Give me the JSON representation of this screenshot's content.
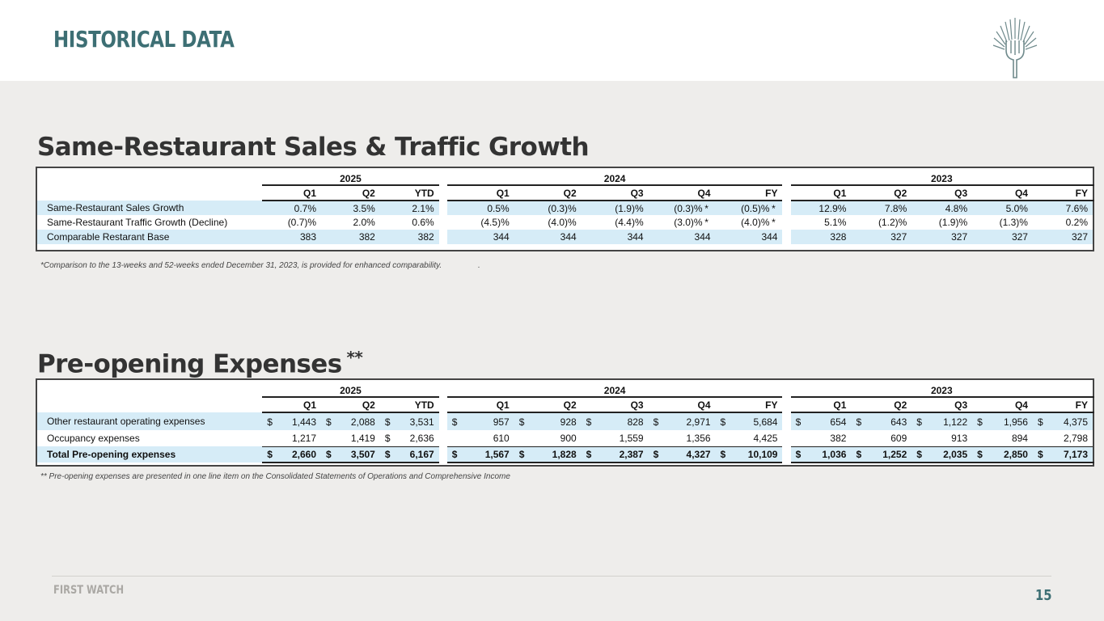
{
  "page": {
    "title": "HISTORICAL DATA",
    "brand": "FIRST WATCH",
    "page_number": "15",
    "accent_color": "#3d6f74",
    "logo_icon": "fork-sunburst-icon"
  },
  "sales": {
    "title": "Same-Restaurant Sales & Traffic Growth",
    "years": [
      "2025",
      "2024",
      "2023"
    ],
    "quarters": {
      "y2025": [
        "Q1",
        "Q2",
        "YTD"
      ],
      "y2024": [
        "Q1",
        "Q2",
        "Q3",
        "Q4",
        "FY"
      ],
      "y2023": [
        "Q1",
        "Q2",
        "Q3",
        "Q4",
        "FY"
      ]
    },
    "star": "*",
    "rows": [
      {
        "label": "Same-Restaurant Sales Growth",
        "v2025": [
          "0.7%",
          "3.5%",
          "2.1%"
        ],
        "v2024": [
          "0.5%",
          "(0.3)%",
          "(1.9)%",
          "(0.3)%",
          "(0.5)%"
        ],
        "v2023": [
          "12.9%",
          "7.8%",
          "4.8%",
          "5.0%",
          "7.6%"
        ]
      },
      {
        "label": "Same-Restaurant Traffic Growth (Decline)",
        "v2025": [
          "(0.7)%",
          "2.0%",
          "0.6%"
        ],
        "v2024": [
          "(4.5)%",
          "(4.0)%",
          "(4.4)%",
          "(3.0)%",
          "(4.0)%"
        ],
        "v2023": [
          "5.1%",
          "(1.2)%",
          "(1.9)%",
          "(1.3)%",
          "0.2%"
        ]
      },
      {
        "label": "Comparable Restarant Base",
        "v2025": [
          "383",
          "382",
          "382"
        ],
        "v2024": [
          "344",
          "344",
          "344",
          "344",
          "344"
        ],
        "v2023": [
          "328",
          "327",
          "327",
          "327",
          "327"
        ]
      }
    ],
    "footnote": "*Comparison to the 13-weeks and 52-weeks ended December 31, 2023, is provided for enhanced comparability.",
    "footnote_tail": "."
  },
  "preopening": {
    "title": "Pre-opening Expenses",
    "title_mark": "**",
    "currency": "$",
    "rows": [
      {
        "label": "Other restaurant operating expenses",
        "v2025": [
          "1,443",
          "2,088",
          "3,531"
        ],
        "v2024": [
          "957",
          "928",
          "828",
          "2,971",
          "5,684"
        ],
        "v2023": [
          "654",
          "643",
          "1,122",
          "1,956",
          "4,375"
        ]
      },
      {
        "label": "Occupancy expenses",
        "v2025": [
          "1,217",
          "1,419",
          "2,636"
        ],
        "v2024": [
          "610",
          "900",
          "1,559",
          "1,356",
          "4,425"
        ],
        "v2023": [
          "382",
          "609",
          "913",
          "894",
          "2,798"
        ]
      },
      {
        "label": "Total Pre-opening expenses",
        "v2025": [
          "2,660",
          "3,507",
          "6,167"
        ],
        "v2024": [
          "1,567",
          "1,828",
          "2,387",
          "4,327",
          "10,109"
        ],
        "v2023": [
          "1,036",
          "1,252",
          "2,035",
          "2,850",
          "7,173"
        ]
      }
    ],
    "footnote": "** Pre-opening expenses are presented in one line item on the Consolidated Statements of Operations and Comprehensive Income"
  }
}
